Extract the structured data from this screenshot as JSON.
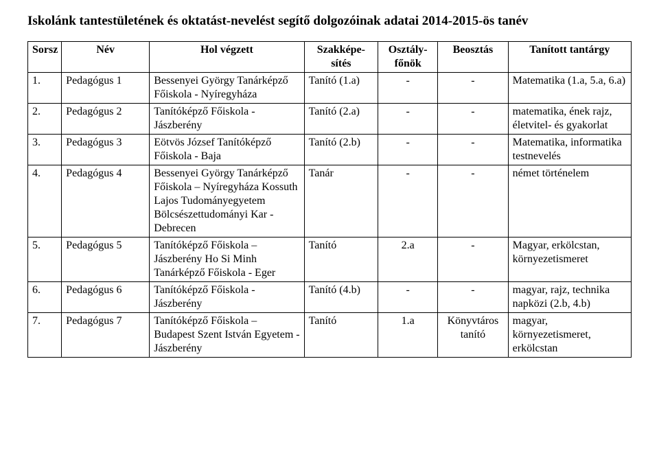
{
  "title": "Iskolánk tantestületének és oktatást-nevelést segítő dolgozóinak adatai 2014-2015-ös tanév",
  "headers": {
    "sorsz": "Sorsz",
    "nev": "Név",
    "hol": "Hol végzett",
    "szak": "Szakképe-sítés",
    "oszt": "Osztály-főnök",
    "beo": "Beosztás",
    "tant": "Tanított tantárgy"
  },
  "rows": [
    {
      "n": "1.",
      "nev": "Pedagógus 1",
      "hol": "Bessenyei György Tanárképző Főiskola - Nyíregyháza",
      "szak": "Tanító (1.a)",
      "oszt": "-",
      "beo": "-",
      "tant": "Matematika (1.a, 5.a, 6.a)"
    },
    {
      "n": "2.",
      "nev": "Pedagógus 2",
      "hol": "Tanítóképző Főiskola - Jászberény",
      "szak": "Tanító (2.a)",
      "oszt": "-",
      "beo": "-",
      "tant": "matematika, ének rajz, életvitel- és gyakorlat"
    },
    {
      "n": "3.",
      "nev": "Pedagógus 3",
      "hol": "Eötvös József Tanítóképző Főiskola - Baja",
      "szak": "Tanító (2.b)",
      "oszt": "-",
      "beo": "-",
      "tant": "Matematika, informatika testnevelés"
    },
    {
      "n": "4.",
      "nev": "Pedagógus 4",
      "hol": "Bessenyei György Tanárképző Főiskola – Nyíregyháza Kossuth Lajos Tudományegyetem Bölcsészettudományi Kar - Debrecen",
      "szak": "Tanár",
      "oszt": "-",
      "beo": "-",
      "tant": "német történelem"
    },
    {
      "n": "5.",
      "nev": "Pedagógus 5",
      "hol": "Tanítóképző Főiskola – Jászberény Ho Si Minh Tanárképző Főiskola - Eger",
      "szak": "Tanító",
      "oszt": "2.a",
      "beo": "-",
      "tant": "Magyar, erkölcstan, környezetismeret"
    },
    {
      "n": "6.",
      "nev": "Pedagógus 6",
      "hol": "Tanítóképző Főiskola - Jászberény",
      "szak": "Tanító (4.b)",
      "oszt": "-",
      "beo": "-",
      "tant": "magyar, rajz, technika napközi (2.b, 4.b)"
    },
    {
      "n": "7.",
      "nev": "Pedagógus 7",
      "hol": "Tanítóképző Főiskola – Budapest Szent István Egyetem - Jászberény",
      "szak": "Tanító",
      "oszt": "1.a",
      "beo": "Könyvtáros tanító",
      "tant": "magyar, környezetismeret, erkölcstan"
    }
  ]
}
